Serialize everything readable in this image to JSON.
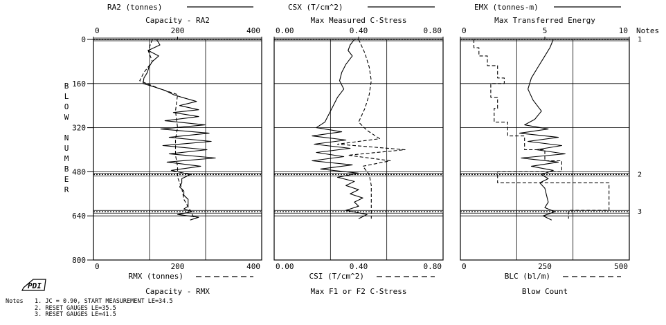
{
  "chart_data": {
    "type": "line",
    "y_axis": {
      "label_letters": [
        "B",
        "L",
        "O",
        "W",
        " ",
        "N",
        "U",
        "M",
        "B",
        "E",
        "R"
      ],
      "ticks": [
        0,
        160,
        320,
        480,
        640,
        800
      ],
      "ylim": [
        0,
        800
      ],
      "inverted": true
    },
    "panels": [
      {
        "id": "ra2",
        "top_legend": "RA2 (tonnes)",
        "top_title": "Capacity - RA2",
        "top_ticks": [
          "0",
          "200",
          "400"
        ],
        "bottom_legend": "RMX (tonnes)",
        "bottom_title": "Capacity - RMX",
        "bottom_ticks": [
          "0",
          "200",
          "400"
        ],
        "xlim": [
          0,
          400
        ],
        "series": [
          {
            "style": "solid",
            "points": [
              [
                0,
                150
              ],
              [
                20,
                158
              ],
              [
                40,
                130
              ],
              [
                60,
                155
              ],
              [
                80,
                140
              ],
              [
                100,
                132
              ],
              [
                120,
                128
              ],
              [
                140,
                120
              ],
              [
                160,
                118
              ],
              [
                170,
                140
              ],
              [
                185,
                170
              ],
              [
                200,
                190
              ],
              [
                210,
                210
              ],
              [
                225,
                245
              ],
              [
                240,
                205
              ],
              [
                255,
                250
              ],
              [
                265,
                190
              ],
              [
                280,
                250
              ],
              [
                295,
                170
              ],
              [
                310,
                265
              ],
              [
                325,
                160
              ],
              [
                340,
                275
              ],
              [
                355,
                180
              ],
              [
                370,
                280
              ],
              [
                385,
                165
              ],
              [
                400,
                270
              ],
              [
                415,
                180
              ],
              [
                430,
                290
              ],
              [
                445,
                175
              ],
              [
                460,
                255
              ],
              [
                475,
                185
              ],
              [
                490,
                230
              ],
              [
                505,
                210
              ],
              [
                520,
                210
              ],
              [
                535,
                205
              ],
              [
                550,
                215
              ],
              [
                565,
                215
              ],
              [
                580,
                225
              ],
              [
                595,
                225
              ],
              [
                605,
                225
              ],
              [
                615,
                215
              ],
              [
                625,
                235
              ],
              [
                635,
                200
              ],
              [
                645,
                250
              ],
              [
                655,
                230
              ]
            ]
          },
          {
            "style": "dashed",
            "points": [
              [
                0,
                140
              ],
              [
                40,
                130
              ],
              [
                80,
                140
              ],
              [
                120,
                120
              ],
              [
                150,
                110
              ],
              [
                180,
                160
              ],
              [
                200,
                200
              ],
              [
                260,
                195
              ],
              [
                320,
                200
              ],
              [
                360,
                195
              ],
              [
                420,
                195
              ],
              [
                460,
                200
              ],
              [
                480,
                200
              ],
              [
                500,
                200
              ],
              [
                540,
                210
              ],
              [
                580,
                215
              ],
              [
                620,
                230
              ],
              [
                650,
                240
              ]
            ]
          }
        ]
      },
      {
        "id": "csx",
        "top_legend": "CSX (T/cm^2)",
        "top_title": "Max Measured C-Stress",
        "top_ticks": [
          "0.00",
          "0.40",
          "0.80"
        ],
        "bottom_legend": "CSI (T/cm^2)",
        "bottom_title": "Max F1 or F2 C-Stress",
        "bottom_ticks": [
          "0.00",
          "0.40",
          "0.80"
        ],
        "xlim": [
          0,
          0.8
        ],
        "series": [
          {
            "style": "solid",
            "points": [
              [
                0,
                0.38
              ],
              [
                20,
                0.36
              ],
              [
                40,
                0.35
              ],
              [
                60,
                0.37
              ],
              [
                90,
                0.34
              ],
              [
                120,
                0.32
              ],
              [
                150,
                0.31
              ],
              [
                180,
                0.33
              ],
              [
                210,
                0.3
              ],
              [
                240,
                0.28
              ],
              [
                270,
                0.26
              ],
              [
                300,
                0.24
              ],
              [
                320,
                0.2
              ],
              [
                335,
                0.32
              ],
              [
                350,
                0.18
              ],
              [
                365,
                0.34
              ],
              [
                380,
                0.19
              ],
              [
                395,
                0.36
              ],
              [
                410,
                0.2
              ],
              [
                425,
                0.33
              ],
              [
                440,
                0.18
              ],
              [
                455,
                0.37
              ],
              [
                470,
                0.22
              ],
              [
                485,
                0.4
              ],
              [
                500,
                0.3
              ],
              [
                515,
                0.38
              ],
              [
                530,
                0.34
              ],
              [
                545,
                0.4
              ],
              [
                560,
                0.36
              ],
              [
                575,
                0.42
              ],
              [
                590,
                0.38
              ],
              [
                605,
                0.4
              ],
              [
                620,
                0.34
              ],
              [
                635,
                0.44
              ],
              [
                650,
                0.4
              ]
            ]
          },
          {
            "style": "dashed",
            "points": [
              [
                0,
                0.4
              ],
              [
                50,
                0.43
              ],
              [
                100,
                0.45
              ],
              [
                150,
                0.46
              ],
              [
                200,
                0.45
              ],
              [
                250,
                0.43
              ],
              [
                300,
                0.4
              ],
              [
                330,
                0.44
              ],
              [
                360,
                0.5
              ],
              [
                380,
                0.3
              ],
              [
                400,
                0.62
              ],
              [
                420,
                0.35
              ],
              [
                440,
                0.55
              ],
              [
                460,
                0.42
              ],
              [
                490,
                0.45
              ],
              [
                530,
                0.46
              ],
              [
                570,
                0.46
              ],
              [
                610,
                0.46
              ],
              [
                650,
                0.46
              ]
            ]
          }
        ]
      },
      {
        "id": "emx",
        "top_legend": "EMX (tonnes-m)",
        "top_title": "Max Transferred Energy",
        "top_ticks": [
          "0",
          "5",
          "10"
        ],
        "bottom_legend": "BLC (bl/m)",
        "bottom_title": "Blow Count",
        "bottom_ticks": [
          "0",
          "250",
          "500"
        ],
        "notes_header": "Notes",
        "xlim": [
          0,
          10
        ],
        "series": [
          {
            "style": "solid",
            "points": [
              [
                0,
                5.5
              ],
              [
                30,
                5.3
              ],
              [
                60,
                5.0
              ],
              [
                100,
                4.6
              ],
              [
                140,
                4.2
              ],
              [
                180,
                4.0
              ],
              [
                220,
                4.3
              ],
              [
                260,
                4.8
              ],
              [
                290,
                4.4
              ],
              [
                310,
                3.8
              ],
              [
                325,
                5.2
              ],
              [
                340,
                3.5
              ],
              [
                355,
                5.8
              ],
              [
                370,
                4.0
              ],
              [
                385,
                6.0
              ],
              [
                400,
                4.5
              ],
              [
                415,
                6.2
              ],
              [
                430,
                3.6
              ],
              [
                445,
                5.8
              ],
              [
                460,
                4.2
              ],
              [
                475,
                5.5
              ],
              [
                490,
                4.8
              ],
              [
                505,
                5.2
              ],
              [
                520,
                4.7
              ],
              [
                540,
                5.0
              ],
              [
                565,
                5.1
              ],
              [
                590,
                5.2
              ],
              [
                610,
                5.0
              ],
              [
                625,
                5.6
              ],
              [
                640,
                4.9
              ],
              [
                655,
                5.4
              ]
            ]
          },
          {
            "style": "dashed",
            "points": [
              [
                0,
                40
              ],
              [
                30,
                40
              ],
              [
                30,
                55
              ],
              [
                60,
                55
              ],
              [
                60,
                80
              ],
              [
                95,
                80
              ],
              [
                95,
                110
              ],
              [
                140,
                110
              ],
              [
                140,
                130
              ],
              [
                160,
                130
              ],
              [
                160,
                90
              ],
              [
                210,
                90
              ],
              [
                210,
                110
              ],
              [
                250,
                110
              ],
              [
                250,
                100
              ],
              [
                300,
                100
              ],
              [
                300,
                140
              ],
              [
                350,
                140
              ],
              [
                350,
                190
              ],
              [
                400,
                190
              ],
              [
                400,
                250
              ],
              [
                440,
                250
              ],
              [
                440,
                300
              ],
              [
                480,
                300
              ],
              [
                480,
                110
              ],
              [
                520,
                110
              ],
              [
                520,
                440
              ],
              [
                620,
                440
              ],
              [
                620,
                320
              ],
              [
                650,
                320
              ]
            ]
          }
        ]
      }
    ],
    "events": [
      {
        "blow": 0,
        "note_number": "1"
      },
      {
        "blow": 490,
        "note_number": "2"
      },
      {
        "blow": 625,
        "note_number": "3"
      }
    ],
    "end_blow": 640
  },
  "notes": {
    "label": "Notes",
    "lines": [
      "1. JC = 0.90, START MEASUREMENT LE=34.5",
      "2. RESET GAUGES LE=35.5",
      "3. RESET GAUGES LE=41.5"
    ]
  },
  "logo": {
    "text": "PDI"
  }
}
